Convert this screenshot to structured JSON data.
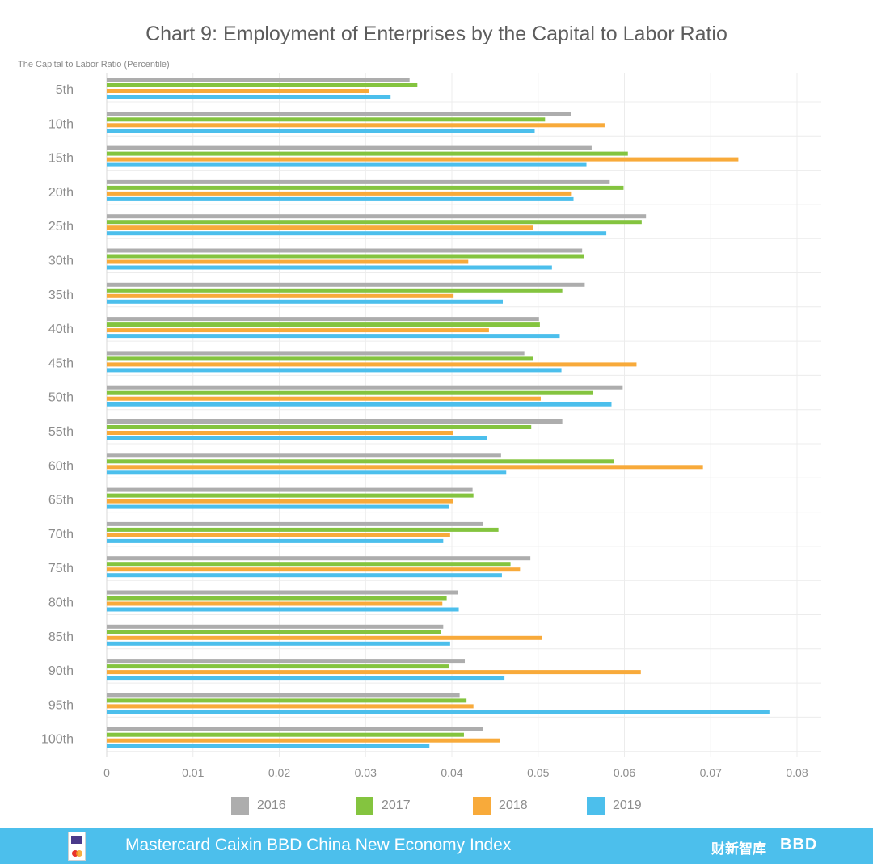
{
  "chart_data": {
    "type": "bar",
    "orientation": "horizontal",
    "title": "Chart 9: Employment of Enterprises by the Capital to Labor Ratio",
    "ylabel": "The Capital to Labor Ratio (Percentile)",
    "xlabel": "",
    "xlim": [
      0,
      0.08
    ],
    "xticks": [
      "0",
      "0.01",
      "0.02",
      "0.03",
      "0.04",
      "0.05",
      "0.06",
      "0.07",
      "0.08"
    ],
    "grid": true,
    "legend_position": "bottom",
    "categories": [
      "5th",
      "10th",
      "15th",
      "20th",
      "25th",
      "30th",
      "35th",
      "40th",
      "45th",
      "50th",
      "55th",
      "60th",
      "65th",
      "70th",
      "75th",
      "80th",
      "85th",
      "90th",
      "95th",
      "100th"
    ],
    "series": [
      {
        "name": "2016",
        "color": "#adadad",
        "values": [
          0.0351,
          0.0538,
          0.0562,
          0.0583,
          0.0625,
          0.0551,
          0.0554,
          0.0501,
          0.0484,
          0.0598,
          0.0528,
          0.0457,
          0.0424,
          0.0436,
          0.0491,
          0.0407,
          0.039,
          0.0415,
          0.0409,
          0.0436
        ]
      },
      {
        "name": "2017",
        "color": "#84c43f",
        "values": [
          0.036,
          0.0508,
          0.0604,
          0.0599,
          0.062,
          0.0553,
          0.0528,
          0.0502,
          0.0494,
          0.0563,
          0.0492,
          0.0588,
          0.0425,
          0.0454,
          0.0468,
          0.0394,
          0.0387,
          0.0397,
          0.0417,
          0.0414
        ]
      },
      {
        "name": "2018",
        "color": "#f8aa3a",
        "values": [
          0.0304,
          0.0577,
          0.0732,
          0.0539,
          0.0494,
          0.0419,
          0.0402,
          0.0443,
          0.0614,
          0.0503,
          0.0401,
          0.0691,
          0.0401,
          0.0398,
          0.0479,
          0.0389,
          0.0504,
          0.0619,
          0.0425,
          0.0456
        ]
      },
      {
        "name": "2019",
        "color": "#4cbfec",
        "values": [
          0.0329,
          0.0496,
          0.0556,
          0.0541,
          0.0579,
          0.0516,
          0.0459,
          0.0525,
          0.0527,
          0.0585,
          0.0441,
          0.0463,
          0.0397,
          0.039,
          0.0458,
          0.0408,
          0.0398,
          0.0461,
          0.0768,
          0.0374
        ]
      }
    ]
  },
  "footer": {
    "text": "Mastercard Caixin BBD China New Economy Index",
    "logo_left": "NE",
    "logo_caixin": "财新智库",
    "logo_bbd": "BBD",
    "color": "#4cbfec"
  }
}
